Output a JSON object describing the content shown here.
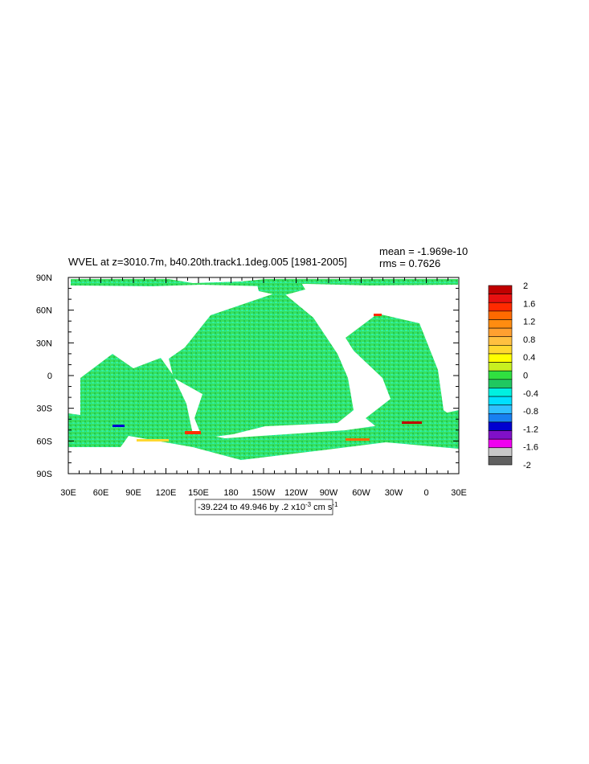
{
  "plot": {
    "title": "WVEL at z=3010.7m, b40.20th.track1.1deg.005 [1981-2005]",
    "mean_label": "mean = -1.969e-10",
    "rms_label": "rms = 0.7626",
    "x_ticks": [
      "30E",
      "60E",
      "90E",
      "120E",
      "150E",
      "180",
      "150W",
      "120W",
      "90W",
      "60W",
      "30W",
      "0",
      "30E"
    ],
    "y_ticks": [
      "90N",
      "60N",
      "30N",
      "0",
      "30S",
      "60S",
      "90S"
    ],
    "colorbar": {
      "labels": [
        "2",
        "1.6",
        "1.2",
        "0.8",
        "0.4",
        "0",
        "-0.4",
        "-0.8",
        "-1.2",
        "-1.6",
        "-2"
      ],
      "colors": [
        "#c00000",
        "#e81010",
        "#ff2a00",
        "#ff6a00",
        "#ff8c10",
        "#ffa030",
        "#ffc040",
        "#ffd830",
        "#ffff00",
        "#c8f020",
        "#30e040",
        "#20c860",
        "#00f0e0",
        "#00e0ff",
        "#30c0ff",
        "#1880f0",
        "#0000d0",
        "#8010c8",
        "#f000f0",
        "#c8c8c8"
      ],
      "bottom_color": "#606060"
    },
    "info": {
      "main": "-39.224 to 49.946 by .2 x10",
      "exp1": "-3",
      "unit": " cm s",
      "exp2": "-1"
    }
  }
}
